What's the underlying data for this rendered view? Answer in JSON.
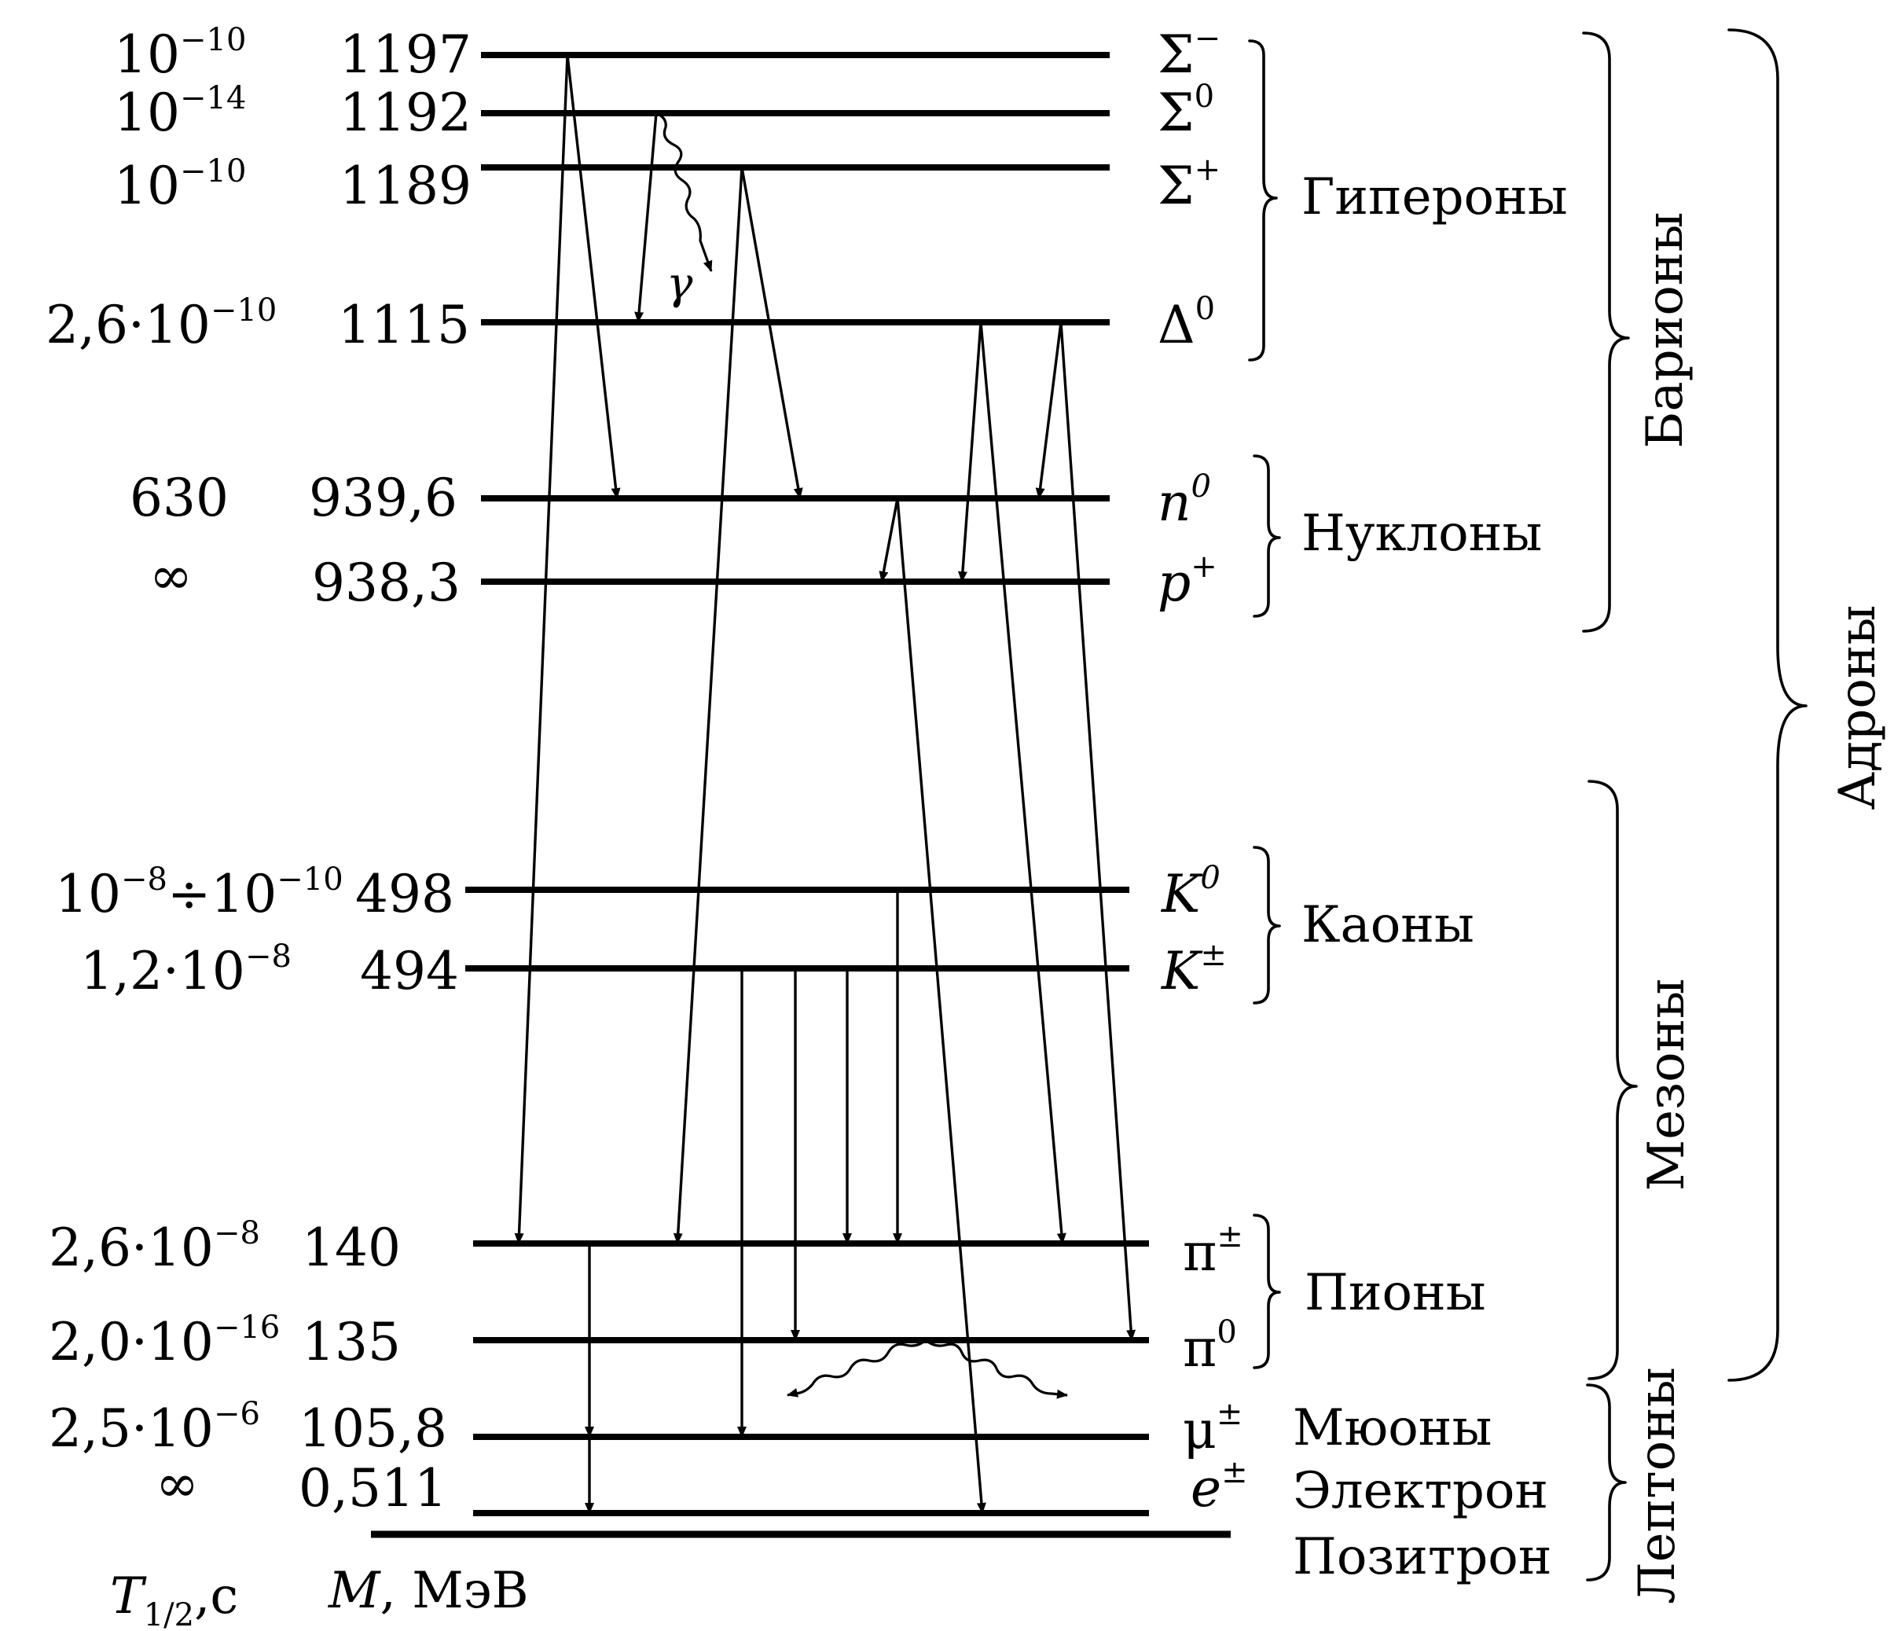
{
  "levels": [
    {
      "id": "sigma-minus",
      "halflife_base": "10",
      "halflife_exp": "−10",
      "mass": "1197",
      "symbol": "Σ",
      "symbol_sup": "−"
    },
    {
      "id": "sigma-zero",
      "halflife_base": "10",
      "halflife_exp": "−14",
      "mass": "1192",
      "symbol": "Σ",
      "symbol_sup": "0"
    },
    {
      "id": "sigma-plus",
      "halflife_base": "10",
      "halflife_exp": "−10",
      "mass": "1189",
      "symbol": "Σ",
      "symbol_sup": "+"
    },
    {
      "id": "lambda-zero",
      "halflife_base": "2,6·10",
      "halflife_exp": "−10",
      "mass": "1115",
      "symbol": "Δ",
      "symbol_sup": "0"
    },
    {
      "id": "neutron",
      "halflife_base": "630",
      "halflife_exp": "",
      "mass": "939,6",
      "symbol": "n",
      "symbol_sup": "0"
    },
    {
      "id": "proton",
      "halflife_base": "∞",
      "halflife_exp": "",
      "mass": "938,3",
      "symbol": "p",
      "symbol_sup": "+"
    },
    {
      "id": "kaon-zero",
      "halflife_base": "10",
      "halflife_exp": "−8",
      "halflife_mid": "÷10",
      "halflife_exp2": "−10",
      "mass": "498",
      "symbol": "K",
      "symbol_sup": "0"
    },
    {
      "id": "kaon-charged",
      "halflife_base": "1,2·10",
      "halflife_exp": "−8",
      "mass": "494",
      "symbol": "K",
      "symbol_sup": "±"
    },
    {
      "id": "pion-charged",
      "halflife_base": "2,6·10",
      "halflife_exp": "−8",
      "mass": "140",
      "symbol": "π",
      "symbol_sup": "±"
    },
    {
      "id": "pion-zero",
      "halflife_base": "2,0·10",
      "halflife_exp": "−16",
      "mass": "135",
      "symbol": "π",
      "symbol_sup": "0"
    },
    {
      "id": "muon",
      "halflife_base": "2,5·10",
      "halflife_exp": "−6",
      "mass": "105,8",
      "symbol": "μ",
      "symbol_sup": "±"
    },
    {
      "id": "electron",
      "halflife_base": "∞",
      "halflife_exp": "",
      "mass": "0,511",
      "symbol": "e",
      "symbol_sup": "±"
    }
  ],
  "groups": {
    "hyperons": "Гипероны",
    "nucleons": "Нуклоны",
    "kaons": "Каоны",
    "pions": "Пионы",
    "muons": "Мюоны",
    "electron": "Электрон",
    "positron": "Позитрон",
    "baryons": "Барионы",
    "mesons": "Мезоны",
    "leptons": "Лептоны",
    "hadrons": "Адроны"
  },
  "gamma_label": "γ",
  "axis": {
    "halflife_main": "T",
    "halflife_sub": "1/2",
    "halflife_unit": ",с",
    "mass_main": "M",
    "mass_unit": ",  МэВ"
  }
}
